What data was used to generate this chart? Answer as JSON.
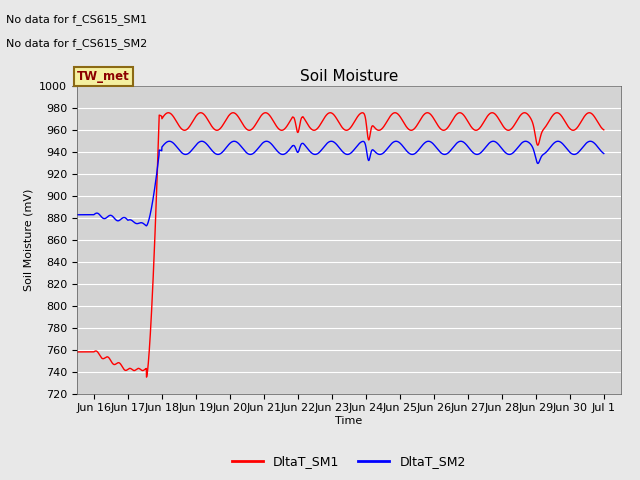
{
  "title": "Soil Moisture",
  "ylabel": "Soil Moisture (mV)",
  "xlabel": "Time",
  "ylim": [
    720,
    1000
  ],
  "yticks": [
    720,
    740,
    760,
    780,
    800,
    820,
    840,
    860,
    880,
    900,
    920,
    940,
    960,
    980,
    1000
  ],
  "xtick_labels": [
    "Jun 16",
    "Jun 17",
    "Jun 18",
    "Jun 19",
    "Jun 20",
    "Jun 21",
    "Jun 22",
    "Jun 23",
    "Jun 24",
    "Jun 25",
    "Jun 26",
    "Jun 27",
    "Jun 28",
    "Jun 29",
    "Jun 30",
    "Jul 1"
  ],
  "annotations": [
    "No data for f_CS615_SM1",
    "No data for f_CS615_SM2"
  ],
  "box_label": "TW_met",
  "legend_entries": [
    "DltaT_SM1",
    "DltaT_SM2"
  ],
  "sm1_color": "#ff0000",
  "sm2_color": "#0000ff",
  "fig_bg_color": "#e8e8e8",
  "plot_bg_color": "#d3d3d3",
  "grid_color": "#ffffff",
  "title_fontsize": 11,
  "label_fontsize": 8,
  "tick_fontsize": 8,
  "annot_fontsize": 8
}
